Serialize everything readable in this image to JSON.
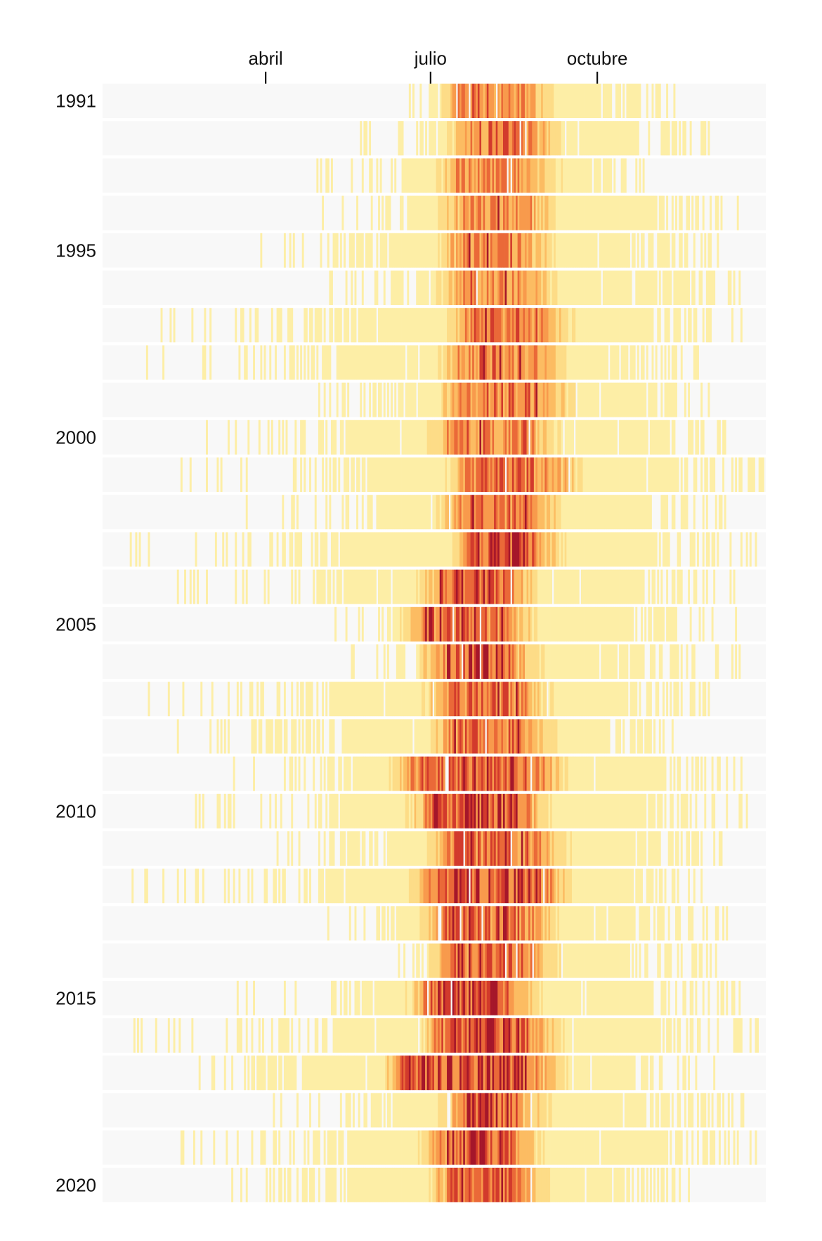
{
  "chart_data": {
    "type": "heatmap",
    "title": "",
    "xlabel": "",
    "ylabel": "",
    "x_unit": "day of year (1 January = day 1)",
    "xlim": [
      1,
      366
    ],
    "x_ticks": [
      {
        "label": "abril",
        "day": 91
      },
      {
        "label": "julio",
        "day": 182
      },
      {
        "label": "octubre",
        "day": 274
      }
    ],
    "years": [
      1991,
      1992,
      1993,
      1994,
      1995,
      1996,
      1997,
      1998,
      1999,
      2000,
      2001,
      2002,
      2003,
      2004,
      2005,
      2006,
      2007,
      2008,
      2009,
      2010,
      2011,
      2012,
      2013,
      2014,
      2015,
      2016,
      2017,
      2018,
      2019,
      2020
    ],
    "year_labels": [
      {
        "year": 1991,
        "label": "1991"
      },
      {
        "year": 1995,
        "label": "1995"
      },
      {
        "year": 2000,
        "label": "2000"
      },
      {
        "year": 2005,
        "label": "2005"
      },
      {
        "year": 2010,
        "label": "2010"
      },
      {
        "year": 2015,
        "label": "2015"
      },
      {
        "year": 2020,
        "label": "2020"
      }
    ],
    "value_scale": {
      "description": "relative daily intensity, 0 = no cell drawn, 1 = darkest",
      "colors": [
        "#fdeea6",
        "#fddc87",
        "#fcbc62",
        "#f89a4c",
        "#ea6938",
        "#d23a2c",
        "#a5162a"
      ]
    },
    "empty_color": "#f8f8f8",
    "rows": [
      {
        "year": 1991,
        "start": 157,
        "end": 318,
        "peak1": 205,
        "peak2": 225,
        "amp": 0.62,
        "tail": 0.78
      },
      {
        "year": 1992,
        "start": 137,
        "end": 336,
        "peak1": 210,
        "peak2": 228,
        "amp": 0.62,
        "tail": 0.75
      },
      {
        "year": 1993,
        "start": 110,
        "end": 300,
        "peak1": 203,
        "peak2": 226,
        "amp": 0.58,
        "tail": 0.75
      },
      {
        "year": 1994,
        "start": 118,
        "end": 352,
        "peak1": 205,
        "peak2": 228,
        "amp": 0.55,
        "tail": 0.75
      },
      {
        "year": 1995,
        "start": 80,
        "end": 340,
        "peak1": 202,
        "peak2": 225,
        "amp": 0.58,
        "tail": 0.72
      },
      {
        "year": 1996,
        "start": 125,
        "end": 353,
        "peak1": 203,
        "peak2": 226,
        "amp": 0.55,
        "tail": 0.75
      },
      {
        "year": 1997,
        "start": 32,
        "end": 354,
        "peak1": 210,
        "peak2": 235,
        "amp": 0.62,
        "tail": 0.7
      },
      {
        "year": 1998,
        "start": 9,
        "end": 335,
        "peak1": 205,
        "peak2": 230,
        "amp": 0.62,
        "tail": 0.72
      },
      {
        "year": 1999,
        "start": 100,
        "end": 335,
        "peak1": 203,
        "peak2": 235,
        "amp": 0.6,
        "tail": 0.72
      },
      {
        "year": 2000,
        "start": 32,
        "end": 350,
        "peak1": 200,
        "peak2": 228,
        "amp": 0.6,
        "tail": 0.72
      },
      {
        "year": 2001,
        "start": 42,
        "end": 366,
        "peak1": 210,
        "peak2": 238,
        "amp": 0.68,
        "tail": 0.7
      },
      {
        "year": 2002,
        "start": 80,
        "end": 353,
        "peak1": 205,
        "peak2": 230,
        "amp": 0.62,
        "tail": 0.72
      },
      {
        "year": 2003,
        "start": 5,
        "end": 363,
        "peak1": 213,
        "peak2": 227,
        "amp": 0.85,
        "tail": 0.7
      },
      {
        "year": 2004,
        "start": 34,
        "end": 351,
        "peak1": 195,
        "peak2": 215,
        "amp": 0.75,
        "tail": 0.7
      },
      {
        "year": 2005,
        "start": 128,
        "end": 350,
        "peak1": 185,
        "peak2": 213,
        "amp": 0.75,
        "tail": 0.7
      },
      {
        "year": 2006,
        "start": 138,
        "end": 354,
        "peak1": 195,
        "peak2": 215,
        "amp": 0.78,
        "tail": 0.7
      },
      {
        "year": 2007,
        "start": 12,
        "end": 338,
        "peak1": 198,
        "peak2": 220,
        "amp": 0.7,
        "tail": 0.72
      },
      {
        "year": 2008,
        "start": 20,
        "end": 323,
        "peak1": 200,
        "peak2": 222,
        "amp": 0.7,
        "tail": 0.72
      },
      {
        "year": 2009,
        "start": 70,
        "end": 364,
        "peak1": 180,
        "peak2": 230,
        "amp": 0.78,
        "tail": 0.7
      },
      {
        "year": 2010,
        "start": 32,
        "end": 357,
        "peak1": 190,
        "peak2": 220,
        "amp": 0.8,
        "tail": 0.7
      },
      {
        "year": 2011,
        "start": 96,
        "end": 343,
        "peak1": 200,
        "peak2": 230,
        "amp": 0.7,
        "tail": 0.7
      },
      {
        "year": 2012,
        "start": 14,
        "end": 336,
        "peak1": 190,
        "peak2": 232,
        "amp": 0.8,
        "tail": 0.7
      },
      {
        "year": 2013,
        "start": 110,
        "end": 345,
        "peak1": 195,
        "peak2": 225,
        "amp": 0.72,
        "tail": 0.7
      },
      {
        "year": 2014,
        "start": 153,
        "end": 339,
        "peak1": 200,
        "peak2": 225,
        "amp": 0.7,
        "tail": 0.72
      },
      {
        "year": 2015,
        "start": 67,
        "end": 358,
        "peak1": 190,
        "peak2": 213,
        "amp": 0.9,
        "tail": 0.72
      },
      {
        "year": 2016,
        "start": 15,
        "end": 366,
        "peak1": 196,
        "peak2": 225,
        "amp": 0.82,
        "tail": 0.7
      },
      {
        "year": 2017,
        "start": 7,
        "end": 338,
        "peak1": 175,
        "peak2": 228,
        "amp": 0.8,
        "tail": 0.72
      },
      {
        "year": 2018,
        "start": 90,
        "end": 359,
        "peak1": 205,
        "peak2": 218,
        "amp": 0.78,
        "tail": 0.7
      },
      {
        "year": 2019,
        "start": 42,
        "end": 362,
        "peak1": 196,
        "peak2": 215,
        "amp": 0.82,
        "tail": 0.7
      },
      {
        "year": 2020,
        "start": 30,
        "end": 331,
        "peak1": 200,
        "peak2": 222,
        "amp": 0.75,
        "tail": 0.72
      }
    ]
  }
}
